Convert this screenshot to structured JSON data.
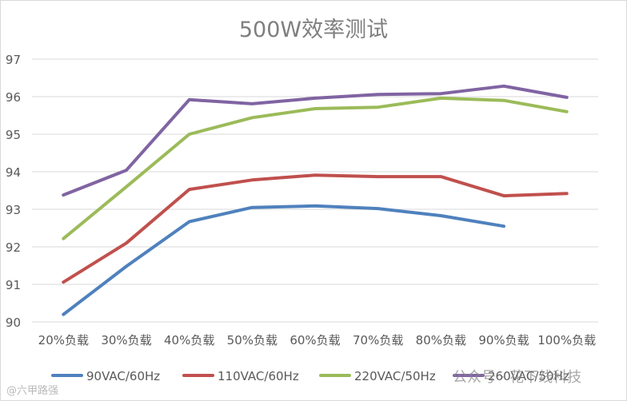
{
  "chart_data": {
    "type": "line",
    "title": "500W效率测试",
    "xlabel": "",
    "ylabel": "",
    "categories": [
      "20%负载",
      "30%负载",
      "40%负载",
      "50%负载",
      "60%负载",
      "70%负载",
      "80%负载",
      "90%负载",
      "100%负载"
    ],
    "ylim": [
      90,
      97
    ],
    "yticks": [
      "90",
      "91",
      "92",
      "93",
      "94",
      "95",
      "96",
      "97"
    ],
    "grid": true,
    "legend_position": "bottom",
    "series": [
      {
        "name": "90VAC/60Hz",
        "color": "#4f81bd",
        "values": [
          90.2,
          91.48,
          92.67,
          93.05,
          93.09,
          93.02,
          92.83,
          92.55,
          null
        ]
      },
      {
        "name": "110VAC/60Hz",
        "color": "#c0504d",
        "values": [
          91.06,
          92.1,
          93.53,
          93.78,
          93.91,
          93.87,
          93.87,
          93.36,
          93.42
        ]
      },
      {
        "name": "220VAC/50Hz",
        "color": "#9bbb59",
        "values": [
          92.22,
          93.6,
          95.0,
          95.44,
          95.68,
          95.72,
          95.96,
          95.9,
          95.6
        ]
      },
      {
        "name": "260VAC/50Hz",
        "color": "#8064a2",
        "values": [
          93.38,
          94.04,
          95.92,
          95.81,
          95.96,
          96.06,
          96.08,
          96.28,
          95.98
        ]
      }
    ]
  },
  "watermark": {
    "main": "公众号 · 花下线科技",
    "corner": "@六甲路强"
  }
}
